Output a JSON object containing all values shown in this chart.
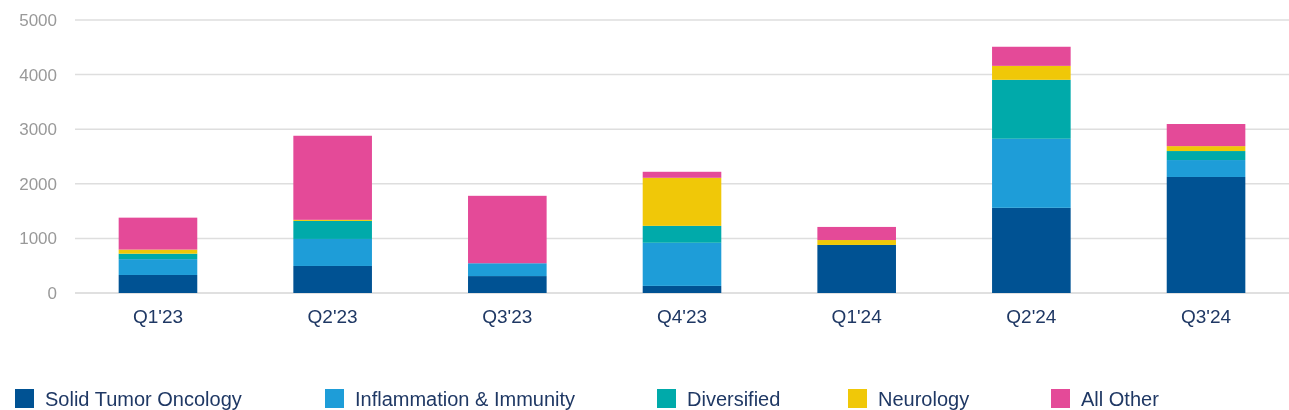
{
  "chart_data": {
    "type": "bar",
    "stacked": true,
    "categories": [
      "Q1'23",
      "Q2'23",
      "Q3'23",
      "Q4'23",
      "Q1'24",
      "Q2'24",
      "Q3'24"
    ],
    "series": [
      {
        "name": "Solid Tumor Oncology",
        "color": "#005293",
        "values": [
          330,
          495,
          310,
          130,
          880,
          1560,
          2125
        ]
      },
      {
        "name": "Inflammation & Immunity",
        "color": "#1e9dd8",
        "values": [
          290,
          495,
          235,
          790,
          0,
          1265,
          310
        ]
      },
      {
        "name": "Diversified",
        "color": "#00aaaa",
        "values": [
          100,
          330,
          0,
          310,
          0,
          1080,
          165
        ]
      },
      {
        "name": "Neurology",
        "color": "#f0c808",
        "values": [
          75,
          20,
          0,
          880,
          90,
          255,
          90
        ]
      },
      {
        "name": "All Other",
        "color": "#e44a98",
        "values": [
          585,
          1540,
          1235,
          110,
          240,
          350,
          405
        ]
      }
    ],
    "ylim": [
      0,
      5000
    ],
    "yticks": [
      0,
      1000,
      2000,
      3000,
      4000,
      5000
    ],
    "grid": "y",
    "legend": "bottom"
  }
}
